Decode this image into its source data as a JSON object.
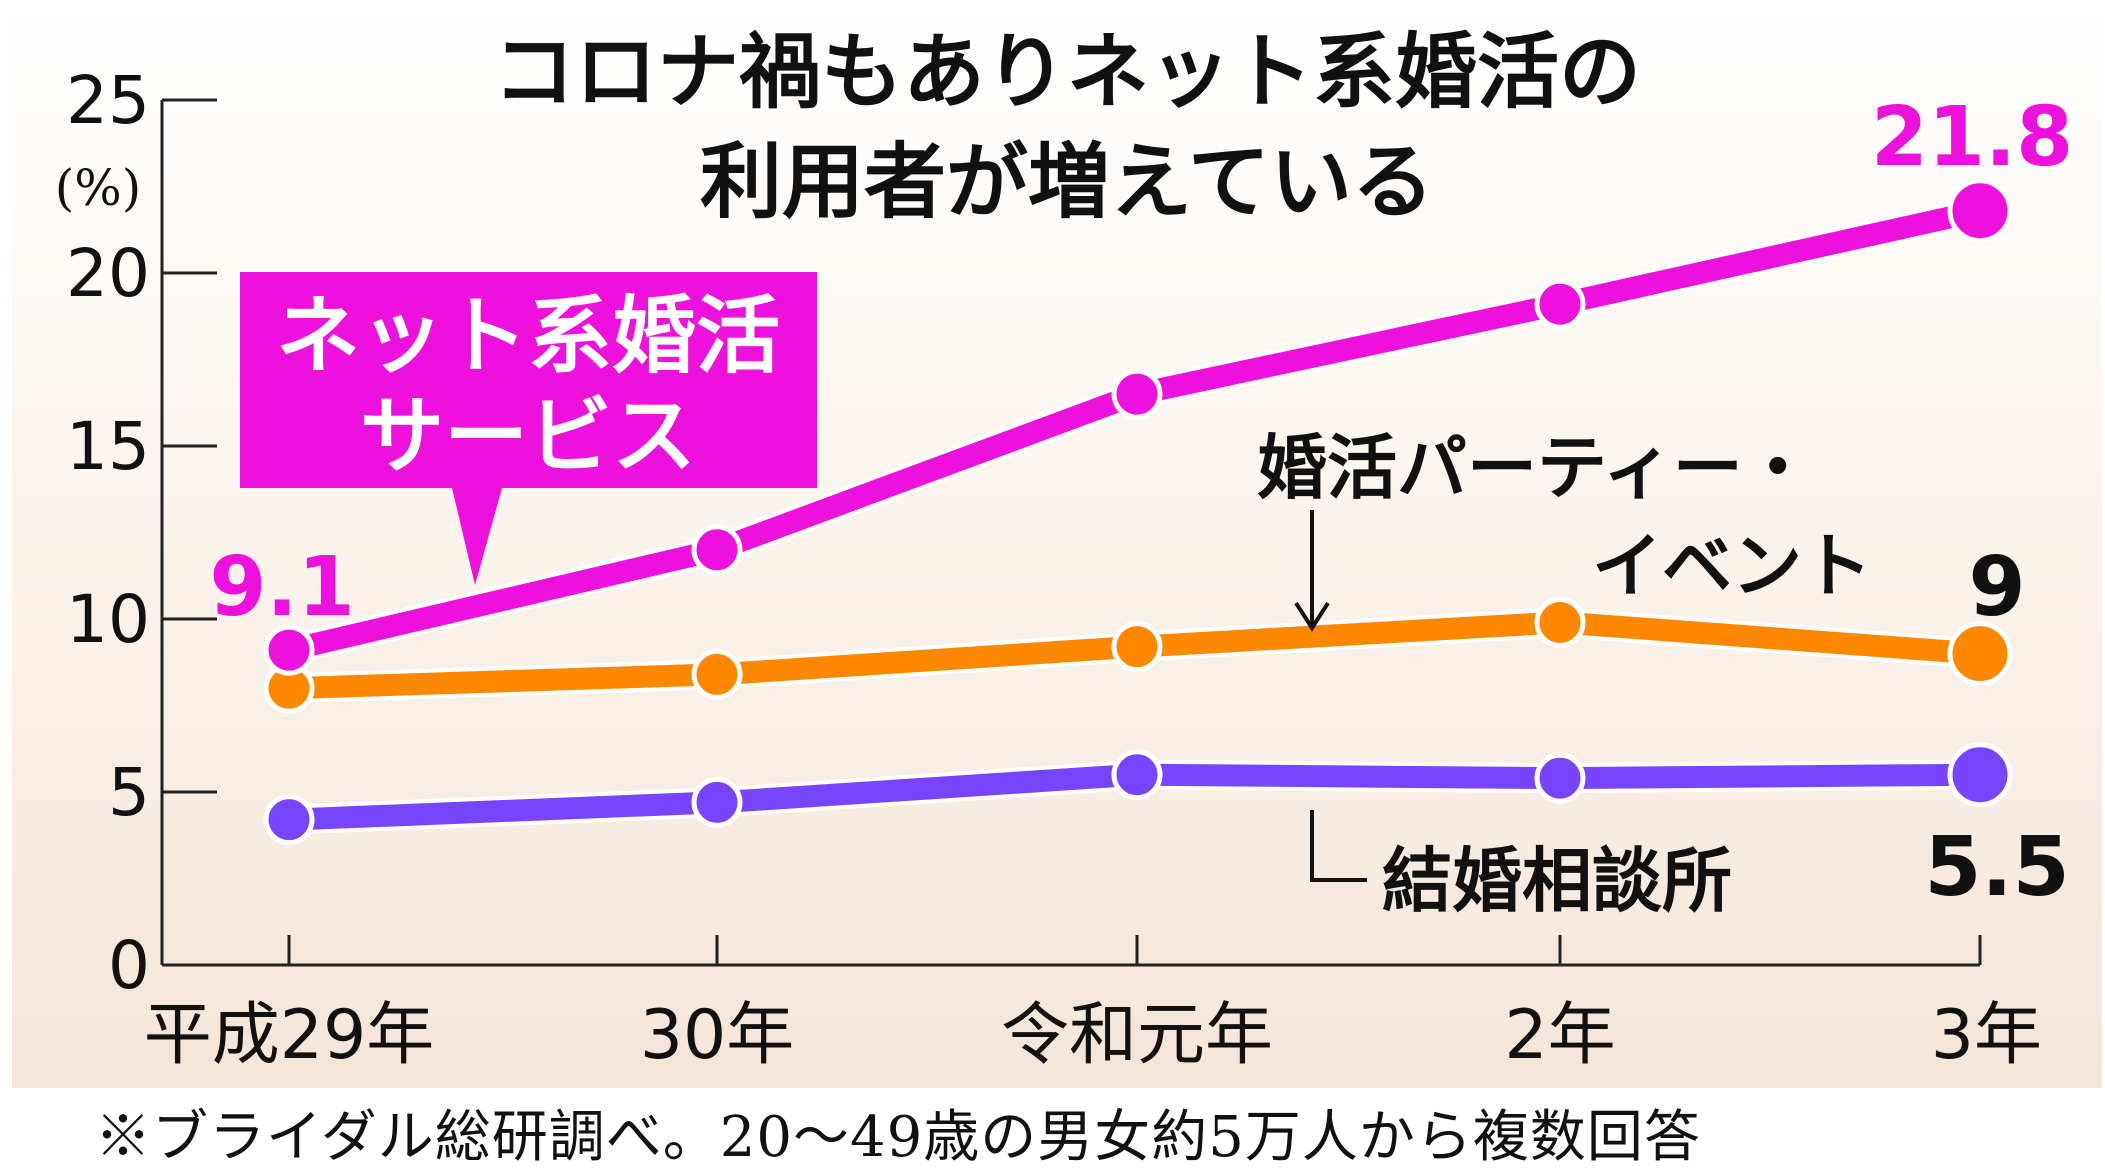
{
  "chart_data": {
    "type": "line",
    "title_lines": [
      "コロナ禍もありネット系婚活の",
      "利用者が増えている"
    ],
    "categories": [
      "平成29年",
      "30年",
      "令和元年",
      "2年",
      "3年"
    ],
    "y_unit": "(%)",
    "ylim": [
      0,
      25
    ],
    "yticks": [
      0,
      5,
      10,
      15,
      20,
      25
    ],
    "grid": false,
    "series": [
      {
        "name_lines": [
          "ネット系婚活",
          "サービス"
        ],
        "color": "#ee11dd",
        "values": [
          9.1,
          12.0,
          16.5,
          19.1,
          21.8
        ],
        "labels": {
          "first": "9.1",
          "last": "21.8"
        }
      },
      {
        "name_lines": [
          "婚活パーティー・",
          "イベント"
        ],
        "color": "#ff8800",
        "values": [
          8.0,
          8.4,
          9.2,
          9.9,
          9.0
        ],
        "labels": {
          "last": "9"
        }
      },
      {
        "name_lines": [
          "結婚相談所"
        ],
        "color": "#7744ff",
        "values": [
          4.2,
          4.7,
          5.5,
          5.4,
          5.5
        ],
        "labels": {
          "last": "5.5"
        }
      }
    ]
  },
  "source_note": "※ブライダル総研調べ。20～49歳の男女約5万人から複数回答"
}
